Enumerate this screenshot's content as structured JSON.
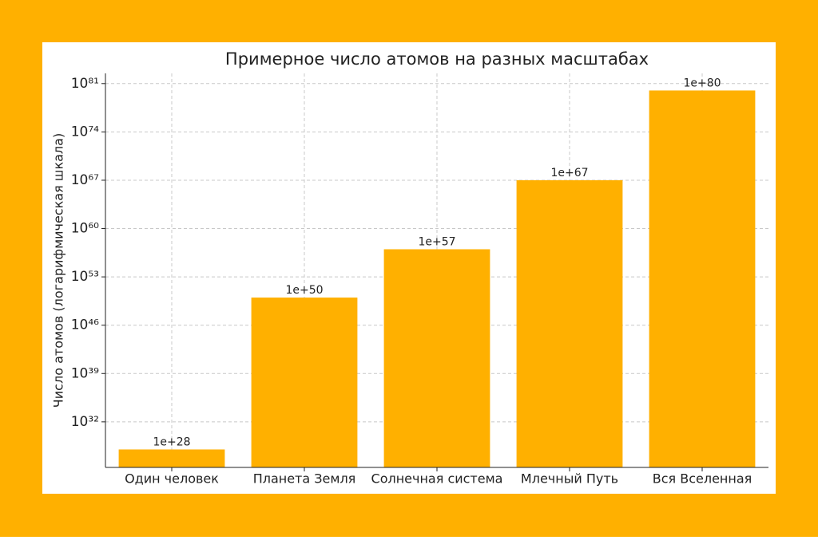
{
  "chart_data": {
    "type": "bar",
    "title": "Примерное число атомов на разных масштабах",
    "y_label": "Число атомов (логарифмическая шкала)",
    "categories": [
      "Один человек",
      "Планета Земля",
      "Солнечная система",
      "Млечный Путь",
      "Вся Вселенная"
    ],
    "values": [
      1e+28,
      1e+50,
      1e+57,
      1e+67,
      1e+80
    ],
    "value_labels": [
      "1e+28",
      "1e+50",
      "1e+57",
      "1e+67",
      "1e+80"
    ],
    "color": "#ffb000",
    "log_scale": true,
    "ylim": [
      2.5e+25,
      3e+82
    ],
    "yticks": [
      {
        "value": 1e+32,
        "label": "10³²"
      },
      {
        "value": 1e+39,
        "label": "10³⁹"
      },
      {
        "value": 1e+46,
        "label": "10⁴⁶"
      },
      {
        "value": 1e+53,
        "label": "10⁵³"
      },
      {
        "value": 1e+60,
        "label": "10⁶⁰"
      },
      {
        "value": 1e+67,
        "label": "10⁶⁷"
      },
      {
        "value": 1e+74,
        "label": "10⁷⁴"
      },
      {
        "value": 1e+81,
        "label": "10⁸¹"
      }
    ],
    "grid": true
  }
}
